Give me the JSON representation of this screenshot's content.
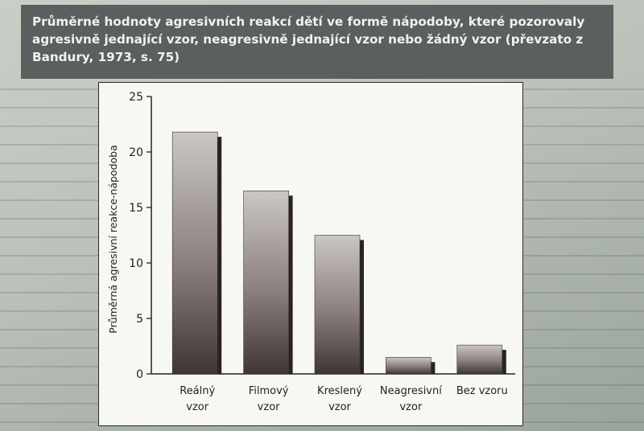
{
  "title": "Průměrné hodnoty agresivních reakcí dětí ve formě nápodoby, které pozorovaly agresivně jednající vzor, neagresivně jednající vzor nebo žádný vzor (převzato z Bandury, 1973, s. 75)",
  "chart_data": {
    "type": "bar",
    "categories": [
      [
        "Reálný",
        "vzor"
      ],
      [
        "Filmový",
        "vzor"
      ],
      [
        "Kreslený",
        "vzor"
      ],
      [
        "Neagresivní",
        "vzor"
      ],
      [
        "Bez vzoru"
      ]
    ],
    "values": [
      21.8,
      16.5,
      12.5,
      1.5,
      2.6
    ],
    "ylabel": "Průměrná agresivní reakce-nápodoba",
    "ylim": [
      0,
      25
    ],
    "yticks": [
      0,
      5,
      10,
      15,
      20,
      25
    ],
    "grid": false,
    "colors": {
      "bar_top": "#cbc7c5",
      "bar_mid": "#8a7f7c",
      "bar_bottom": "#3e3535",
      "shadow": "#2a2222"
    }
  }
}
